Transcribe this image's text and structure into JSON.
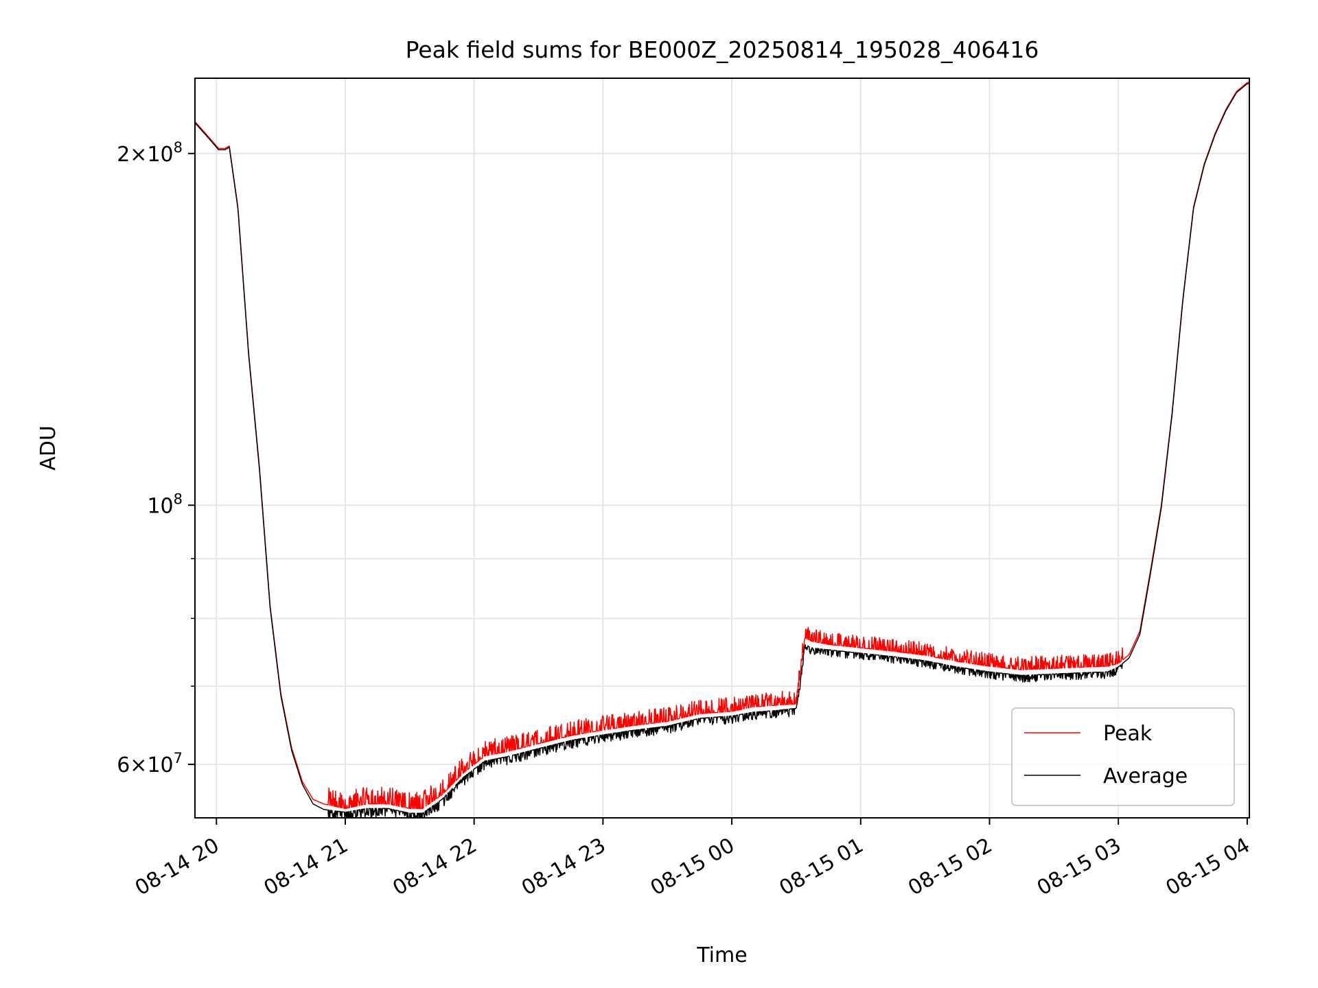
{
  "chart_data": {
    "type": "line",
    "title": "Peak field sums for BE000Z_20250814_195028_406416",
    "xlabel": "Time",
    "ylabel": "ADU",
    "yscale": "log",
    "ylim": [
      54000000,
      232000000
    ],
    "xlim": [
      "2025-08-14 19:50",
      "2025-08-15 04:01"
    ],
    "grid": true,
    "legend_position": "lower right",
    "x_ticks": [
      {
        "t": "2025-08-14 20:00",
        "label": "08-14 20"
      },
      {
        "t": "2025-08-14 21:00",
        "label": "08-14 21"
      },
      {
        "t": "2025-08-14 22:00",
        "label": "08-14 22"
      },
      {
        "t": "2025-08-14 23:00",
        "label": "08-14 23"
      },
      {
        "t": "2025-08-15 00:00",
        "label": "08-15 00"
      },
      {
        "t": "2025-08-15 01:00",
        "label": "08-15 01"
      },
      {
        "t": "2025-08-15 02:00",
        "label": "08-15 02"
      },
      {
        "t": "2025-08-15 03:00",
        "label": "08-15 03"
      },
      {
        "t": "2025-08-15 04:00",
        "label": "08-15 04"
      }
    ],
    "y_major_ticks": [
      {
        "v": 60000000,
        "mant": "6",
        "exp": "7"
      },
      {
        "v": 100000000,
        "mant": "",
        "exp": "8"
      },
      {
        "v": 200000000,
        "mant": "2",
        "exp": "8"
      }
    ],
    "y_minor_ticks": [
      70000000,
      80000000,
      90000000
    ],
    "series": [
      {
        "name": "Peak",
        "color": "#ff0000",
        "x": [
          "2025-08-14 19:50",
          "2025-08-14 19:55",
          "2025-08-14 19:58",
          "2025-08-14 20:01",
          "2025-08-14 20:04",
          "2025-08-14 20:06",
          "2025-08-14 20:10",
          "2025-08-14 20:15",
          "2025-08-14 20:20",
          "2025-08-14 20:25",
          "2025-08-14 20:30",
          "2025-08-14 20:35",
          "2025-08-14 20:40",
          "2025-08-14 20:45",
          "2025-08-14 20:50",
          "2025-08-14 21:00",
          "2025-08-14 21:10",
          "2025-08-14 21:20",
          "2025-08-14 21:30",
          "2025-08-14 21:36",
          "2025-08-14 21:45",
          "2025-08-14 21:55",
          "2025-08-14 22:05",
          "2025-08-14 22:15",
          "2025-08-14 22:30",
          "2025-08-14 22:45",
          "2025-08-14 23:00",
          "2025-08-14 23:15",
          "2025-08-14 23:30",
          "2025-08-14 23:45",
          "2025-08-15 00:00",
          "2025-08-15 00:10",
          "2025-08-15 00:20",
          "2025-08-15 00:30",
          "2025-08-15 00:32",
          "2025-08-15 00:34",
          "2025-08-15 00:37",
          "2025-08-15 00:45",
          "2025-08-15 01:00",
          "2025-08-15 01:15",
          "2025-08-15 01:30",
          "2025-08-15 01:45",
          "2025-08-15 02:00",
          "2025-08-15 02:15",
          "2025-08-15 02:30",
          "2025-08-15 02:45",
          "2025-08-15 02:55",
          "2025-08-15 03:00",
          "2025-08-15 03:05",
          "2025-08-15 03:10",
          "2025-08-15 03:15",
          "2025-08-15 03:20",
          "2025-08-15 03:25",
          "2025-08-15 03:30",
          "2025-08-15 03:35",
          "2025-08-15 03:40",
          "2025-08-15 03:45",
          "2025-08-15 03:50",
          "2025-08-15 03:55",
          "2025-08-15 04:00"
        ],
        "y": [
          213000000,
          208000000,
          205000000,
          202000000,
          202000000,
          203000000,
          180000000,
          135000000,
          108000000,
          82000000,
          69000000,
          62000000,
          58000000,
          56000000,
          55500000,
          55000000,
          55500000,
          55500000,
          55000000,
          55000000,
          56500000,
          59000000,
          61000000,
          61500000,
          62500000,
          63500000,
          64200000,
          64800000,
          65300000,
          66300000,
          66600000,
          67200000,
          67400000,
          67600000,
          72000000,
          77000000,
          76500000,
          76000000,
          75500000,
          75000000,
          74400000,
          73500000,
          72800000,
          72300000,
          72500000,
          72700000,
          72800000,
          73200000,
          74500000,
          78000000,
          88000000,
          100000000,
          120000000,
          150000000,
          180000000,
          196000000,
          208000000,
          218000000,
          226000000,
          230000000
        ],
        "spikes": "dense upward excursions of ~1-2e6 between 20:55 and 00:30, smaller ones after 00:37"
      },
      {
        "name": "Average",
        "color": "#000000",
        "x": [
          "2025-08-14 19:50",
          "2025-08-14 19:55",
          "2025-08-14 19:58",
          "2025-08-14 20:01",
          "2025-08-14 20:04",
          "2025-08-14 20:06",
          "2025-08-14 20:10",
          "2025-08-14 20:15",
          "2025-08-14 20:20",
          "2025-08-14 20:25",
          "2025-08-14 20:30",
          "2025-08-14 20:35",
          "2025-08-14 20:40",
          "2025-08-14 20:45",
          "2025-08-14 20:50",
          "2025-08-14 21:00",
          "2025-08-14 21:10",
          "2025-08-14 21:20",
          "2025-08-14 21:30",
          "2025-08-14 21:36",
          "2025-08-14 21:45",
          "2025-08-14 21:55",
          "2025-08-14 22:05",
          "2025-08-14 22:15",
          "2025-08-14 22:30",
          "2025-08-14 22:45",
          "2025-08-14 23:00",
          "2025-08-14 23:15",
          "2025-08-14 23:30",
          "2025-08-14 23:45",
          "2025-08-15 00:00",
          "2025-08-15 00:10",
          "2025-08-15 00:20",
          "2025-08-15 00:30",
          "2025-08-15 00:32",
          "2025-08-15 00:34",
          "2025-08-15 00:37",
          "2025-08-15 00:45",
          "2025-08-15 01:00",
          "2025-08-15 01:15",
          "2025-08-15 01:30",
          "2025-08-15 01:45",
          "2025-08-15 02:00",
          "2025-08-15 02:15",
          "2025-08-15 02:30",
          "2025-08-15 02:45",
          "2025-08-15 02:55",
          "2025-08-15 03:00",
          "2025-08-15 03:05",
          "2025-08-15 03:10",
          "2025-08-15 03:15",
          "2025-08-15 03:20",
          "2025-08-15 03:25",
          "2025-08-15 03:30",
          "2025-08-15 03:35",
          "2025-08-15 03:40",
          "2025-08-15 03:45",
          "2025-08-15 03:50",
          "2025-08-15 03:55",
          "2025-08-15 04:00"
        ],
        "y": [
          212500000,
          207500000,
          204500000,
          201500000,
          201500000,
          202500000,
          179500000,
          134500000,
          107500000,
          81700000,
          68700000,
          61700000,
          57700000,
          55500000,
          54900000,
          54600000,
          55000000,
          55000000,
          54500000,
          54500000,
          56000000,
          58500000,
          60400000,
          60900000,
          61900000,
          62900000,
          63600000,
          64200000,
          64700000,
          65700000,
          66000000,
          66500000,
          66700000,
          67000000,
          71000000,
          76000000,
          75500000,
          75200000,
          74700000,
          74200000,
          73600000,
          72700000,
          72000000,
          71500000,
          71700000,
          71900000,
          72000000,
          72700000,
          74000000,
          77500000,
          87500000,
          99500000,
          119500000,
          149500000,
          179500000,
          195500000,
          207500000,
          217500000,
          225500000,
          229500000
        ],
        "spikes": "small downward excursions of ~0.5-1e6 between 20:55 and 03:00"
      }
    ]
  }
}
